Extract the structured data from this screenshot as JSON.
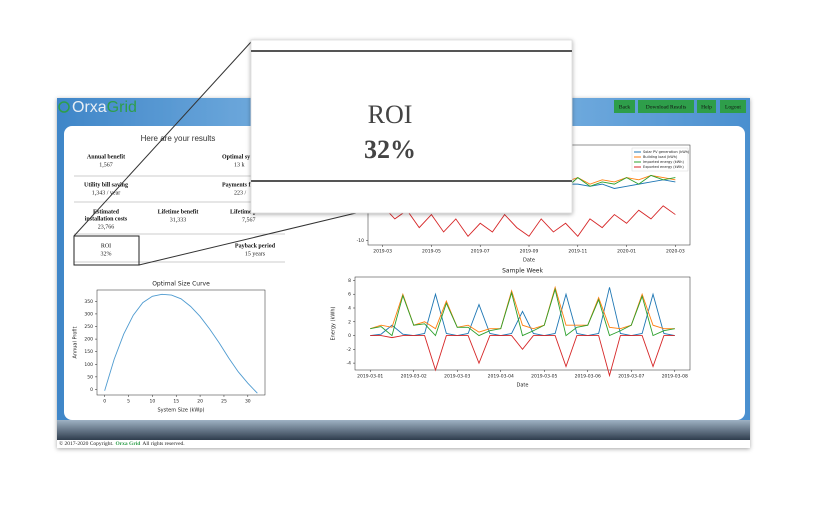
{
  "header": {
    "logo_parts": [
      "Orxa",
      "Grid"
    ],
    "buttons": [
      "Back",
      "Download Results",
      "Help",
      "Logout"
    ]
  },
  "results": {
    "title": "Here are your results",
    "items": [
      {
        "label": [
          "Annual benefit"
        ],
        "value": "1,567"
      },
      {
        "label": [
          "Optimal sy"
        ],
        "value": "13 k"
      },
      {
        "label": [
          "Utility bill saving"
        ],
        "value": "1,343 / year"
      },
      {
        "label": [
          "Payments fr"
        ],
        "value": "223 /"
      },
      {
        "label": [
          "Estimated",
          "installation costs"
        ],
        "value": "23,766"
      },
      {
        "label": [
          "Lifetime benefit"
        ],
        "value": "31,333"
      },
      {
        "label": [
          "Lifetime p"
        ],
        "value": "7,567"
      },
      {
        "label": [
          "ROI"
        ],
        "value": "32%"
      },
      {
        "label": [
          "Payback period"
        ],
        "value": "15 years"
      }
    ]
  },
  "callout": {
    "label": "ROI",
    "value": "32%"
  },
  "charts": [
    {
      "type": "line",
      "title": "Optimal Size Curve",
      "x_label": "System Size (kWp)",
      "y_label": "Annual Profit",
      "x": [
        0,
        2,
        4,
        6,
        8,
        10,
        12,
        14,
        16,
        18,
        20,
        22,
        24,
        26,
        28,
        30,
        32
      ],
      "series": [
        {
          "name": "Annual Profit",
          "color": "#4f9bd0",
          "values": [
            -5,
            120,
            220,
            295,
            345,
            370,
            378,
            375,
            360,
            330,
            290,
            240,
            185,
            125,
            70,
            25,
            -15
          ]
        }
      ],
      "xlim": [
        -1.6,
        33.6
      ],
      "ylim": [
        -22,
        395
      ],
      "xticks": [
        0,
        5,
        10,
        15,
        20,
        25,
        30
      ],
      "yticks": [
        0,
        50,
        100,
        150,
        200,
        250,
        300,
        350
      ]
    },
    {
      "type": "line",
      "x_label": "Date",
      "legend": "upper right",
      "x": [
        0,
        0.5,
        1,
        1.5,
        2,
        2.5,
        3,
        3.5,
        4,
        4.5,
        5,
        5.5,
        6,
        6.5,
        7,
        7.5,
        8,
        8.5,
        9,
        9.5,
        10,
        10.5,
        11,
        11.5,
        12
      ],
      "series": [
        {
          "name": "Solar PV generation (kWh)",
          "color": "#1f77b4",
          "values": [
            1,
            2,
            1.5,
            2.5,
            2,
            3,
            2.5,
            3.5,
            3,
            3.5,
            2.5,
            3,
            3.5,
            4,
            3.5,
            3,
            3,
            2.5,
            3,
            2,
            2.5,
            3,
            3.5,
            4,
            3.5
          ]
        },
        {
          "name": "Building load (kWh)",
          "color": "#ff7f0e",
          "values": [
            2,
            1.5,
            2.5,
            2,
            3,
            2.5,
            3.5,
            3,
            4,
            3.5,
            3,
            4,
            4.5,
            3.5,
            4,
            3.5,
            4.5,
            3,
            4,
            3.5,
            4.5,
            4,
            5,
            4.5,
            4
          ]
        },
        {
          "name": "Imported energy (kWh)",
          "color": "#2ca02c",
          "values": [
            1.5,
            0.5,
            2,
            1,
            2.5,
            1,
            3,
            1.5,
            3.5,
            2,
            2.5,
            3,
            4,
            2,
            3.5,
            2,
            4.5,
            2.5,
            3.5,
            3,
            4.5,
            3,
            5,
            4,
            4.5
          ]
        },
        {
          "name": "Exported energy (kWh)",
          "color": "#d62728",
          "values": [
            -2,
            -5,
            -3,
            -7,
            -4,
            -8,
            -5,
            -9,
            -6,
            -8,
            -4,
            -7,
            -9,
            -5,
            -8,
            -6,
            -9,
            -5,
            -7,
            -4,
            -6,
            -3,
            -5,
            -2,
            -4
          ]
        }
      ],
      "xlim": [
        -0.6,
        12.6
      ],
      "ylim": [
        -11,
        12
      ],
      "yticks": [
        -10
      ],
      "xticks": [
        {
          "value": 0,
          "label": "2019-03"
        },
        {
          "value": 2,
          "label": "2019-05"
        },
        {
          "value": 4,
          "label": "2019-07"
        },
        {
          "value": 6,
          "label": "2019-09"
        },
        {
          "value": 8,
          "label": "2019-11"
        },
        {
          "value": 10,
          "label": "2020-01"
        },
        {
          "value": 12,
          "label": "2020-03"
        }
      ]
    },
    {
      "type": "line",
      "title": "Sample Week",
      "x_label": "Date",
      "y_label": "Energy (kWh)",
      "x": [
        0,
        0.25,
        0.5,
        0.75,
        1,
        1.25,
        1.5,
        1.75,
        2,
        2.25,
        2.5,
        2.75,
        3,
        3.25,
        3.5,
        3.75,
        4,
        4.25,
        4.5,
        4.75,
        5,
        5.25,
        5.5,
        5.75,
        6,
        6.25,
        6.5,
        6.75,
        7
      ],
      "series": [
        {
          "name": "Solar PV generation (kWh)",
          "color": "#1f77b4",
          "values": [
            0,
            0.2,
            1.5,
            0.2,
            0,
            0.3,
            6,
            0.3,
            0,
            0.3,
            4.5,
            0.3,
            0,
            0.3,
            3.5,
            0.3,
            0,
            0.3,
            6,
            0.3,
            0,
            0.3,
            7,
            0.3,
            0,
            0.3,
            6,
            0.3,
            0
          ]
        },
        {
          "name": "Building load (kWh)",
          "color": "#ff7f0e",
          "values": [
            1,
            1.5,
            1.2,
            6,
            1.5,
            2,
            1,
            5,
            1.2,
            1.5,
            0.5,
            1,
            1,
            6.5,
            1.5,
            1,
            1.5,
            7,
            1.5,
            1.5,
            1.5,
            5.5,
            1.2,
            1,
            1.5,
            6,
            1.5,
            1,
            1
          ]
        },
        {
          "name": "Imported energy (kWh)",
          "color": "#2ca02c",
          "values": [
            1,
            1.3,
            0,
            5.8,
            1.5,
            1.7,
            0,
            4.7,
            1.2,
            1.2,
            0,
            0.7,
            1,
            6.2,
            0,
            0.7,
            1.5,
            6.7,
            0,
            1.2,
            1.5,
            5.2,
            0,
            0.7,
            1.5,
            5.7,
            0,
            0.7,
            1
          ]
        },
        {
          "name": "Exported energy (kWh)",
          "color": "#d62728",
          "values": [
            0,
            0,
            -0.3,
            0,
            0,
            0,
            -5,
            0,
            0,
            0,
            -4,
            0,
            0,
            0,
            -2,
            0,
            0,
            0,
            -4.5,
            0,
            0,
            0,
            -5.8,
            0,
            0,
            0,
            -4.5,
            0,
            0
          ]
        }
      ],
      "xlim": [
        -0.35,
        7.35
      ],
      "ylim": [
        -5,
        8.5
      ],
      "yticks": [
        -4,
        -2,
        0,
        2,
        4,
        6,
        8
      ],
      "xticks": [
        {
          "value": 0,
          "label": "2019-03-01"
        },
        {
          "value": 1,
          "label": "2019-03-02"
        },
        {
          "value": 2,
          "label": "2019-03-03"
        },
        {
          "value": 3,
          "label": "2019-03-04"
        },
        {
          "value": 4,
          "label": "2019-03-05"
        },
        {
          "value": 5,
          "label": "2019-03-06"
        },
        {
          "value": 6,
          "label": "2019-03-07"
        },
        {
          "value": 7,
          "label": "2019-03-08"
        }
      ]
    }
  ],
  "footer": {
    "parts": [
      "© 2017-2020 Copyright.",
      "Orxa Grid",
      "All rights reserved."
    ]
  }
}
